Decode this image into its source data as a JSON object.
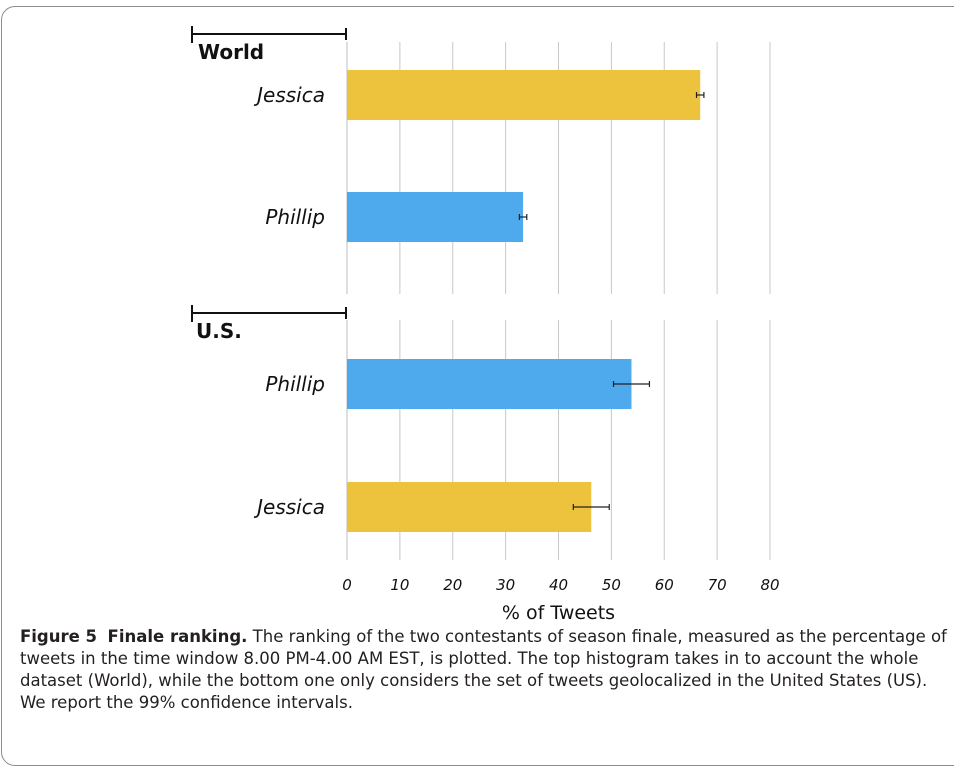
{
  "chart_data": [
    {
      "type": "bar",
      "orientation": "horizontal",
      "title": "World",
      "categories": [
        "Jessica",
        "Phillip"
      ],
      "values": [
        66.8,
        33.3
      ],
      "error": [
        0.7,
        0.7
      ],
      "colors": [
        "#edc23c",
        "#4eaaec"
      ],
      "xlim": [
        0,
        80
      ],
      "grid": true
    },
    {
      "type": "bar",
      "orientation": "horizontal",
      "title": "U.S.",
      "categories": [
        "Phillip",
        "Jessica"
      ],
      "values": [
        53.8,
        46.2
      ],
      "error": [
        3.4,
        3.4
      ],
      "colors": [
        "#4eaaec",
        "#edc23c"
      ],
      "xlim": [
        0,
        80
      ],
      "xticks": [
        0,
        10,
        20,
        30,
        40,
        50,
        60,
        70,
        80
      ],
      "xlabel": "% of Tweets",
      "grid": true
    }
  ],
  "caption": {
    "label": "Figure 5",
    "title": "Finale ranking.",
    "text": "The ranking of the two contestants of season finale, measured as the percentage of tweets in the time window 8.00 PM-4.00 AM EST, is plotted. The top histogram takes in to account the whole dataset (World), while the bottom one only considers the set of tweets geolocalized in the United States (US). We report the 99% confidence intervals."
  }
}
